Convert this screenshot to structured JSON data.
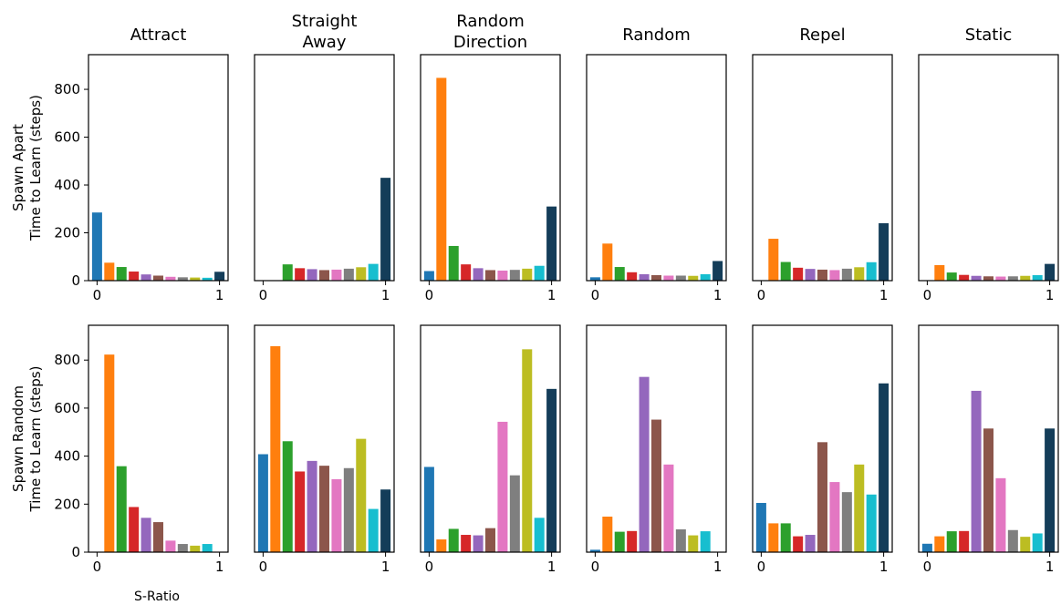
{
  "chart_data": {
    "type": "bar",
    "figure_title": "",
    "column_titles": [
      [
        "Attract"
      ],
      [
        "Straight",
        "Away"
      ],
      [
        "Random",
        "Direction"
      ],
      [
        "Random"
      ],
      [
        "Repel"
      ],
      [
        "Static"
      ]
    ],
    "row_labels": [
      [
        "Spawn Apart",
        "Time to Learn (steps)"
      ],
      [
        "Spawn Random",
        "Time to Learn (steps)"
      ]
    ],
    "xlabel": "S-Ratio",
    "x": [
      0,
      0.1,
      0.2,
      0.3,
      0.4,
      0.5,
      0.6,
      0.7,
      0.8,
      0.9,
      1.0
    ],
    "xticks": [
      0,
      1
    ],
    "yticks": [
      0,
      200,
      400,
      600,
      800
    ],
    "ylim": [
      0,
      945
    ],
    "xlim": [
      -0.07,
      1.07
    ],
    "bar_colors": [
      "#1f77b4",
      "#ff7f0e",
      "#2ca02c",
      "#d62728",
      "#9467bd",
      "#8c564b",
      "#e377c2",
      "#7f7f7f",
      "#bcbd22",
      "#17becf",
      "#143d59"
    ],
    "grid": false,
    "legend": "none",
    "panels": [
      {
        "row": 0,
        "col": 0,
        "values": [
          285,
          75,
          57,
          38,
          26,
          21,
          16,
          14,
          13,
          12,
          37
        ]
      },
      {
        "row": 0,
        "col": 1,
        "values": [
          0,
          0,
          68,
          52,
          48,
          44,
          46,
          50,
          56,
          70,
          430
        ]
      },
      {
        "row": 0,
        "col": 2,
        "values": [
          40,
          848,
          145,
          68,
          52,
          44,
          42,
          45,
          50,
          62,
          310
        ]
      },
      {
        "row": 0,
        "col": 3,
        "values": [
          14,
          155,
          57,
          35,
          27,
          23,
          21,
          21,
          20,
          27,
          82
        ]
      },
      {
        "row": 0,
        "col": 4,
        "values": [
          0,
          175,
          78,
          54,
          49,
          46,
          44,
          50,
          56,
          77,
          240
        ]
      },
      {
        "row": 0,
        "col": 5,
        "values": [
          0,
          65,
          34,
          24,
          20,
          18,
          17,
          18,
          20,
          23,
          70
        ]
      },
      {
        "row": 1,
        "col": 0,
        "values": [
          0,
          823,
          358,
          188,
          143,
          125,
          48,
          34,
          27,
          34,
          0
        ]
      },
      {
        "row": 1,
        "col": 1,
        "values": [
          408,
          858,
          462,
          336,
          380,
          360,
          304,
          350,
          472,
          180,
          261
        ]
      },
      {
        "row": 1,
        "col": 2,
        "values": [
          355,
          53,
          97,
          72,
          70,
          100,
          543,
          320,
          845,
          143,
          680
        ]
      },
      {
        "row": 1,
        "col": 3,
        "values": [
          10,
          148,
          85,
          88,
          730,
          552,
          365,
          95,
          70,
          87,
          0
        ]
      },
      {
        "row": 1,
        "col": 4,
        "values": [
          205,
          120,
          120,
          66,
          72,
          458,
          292,
          250,
          365,
          240,
          703
        ]
      },
      {
        "row": 1,
        "col": 5,
        "values": [
          35,
          66,
          87,
          88,
          672,
          515,
          308,
          92,
          64,
          78,
          515
        ]
      }
    ]
  }
}
